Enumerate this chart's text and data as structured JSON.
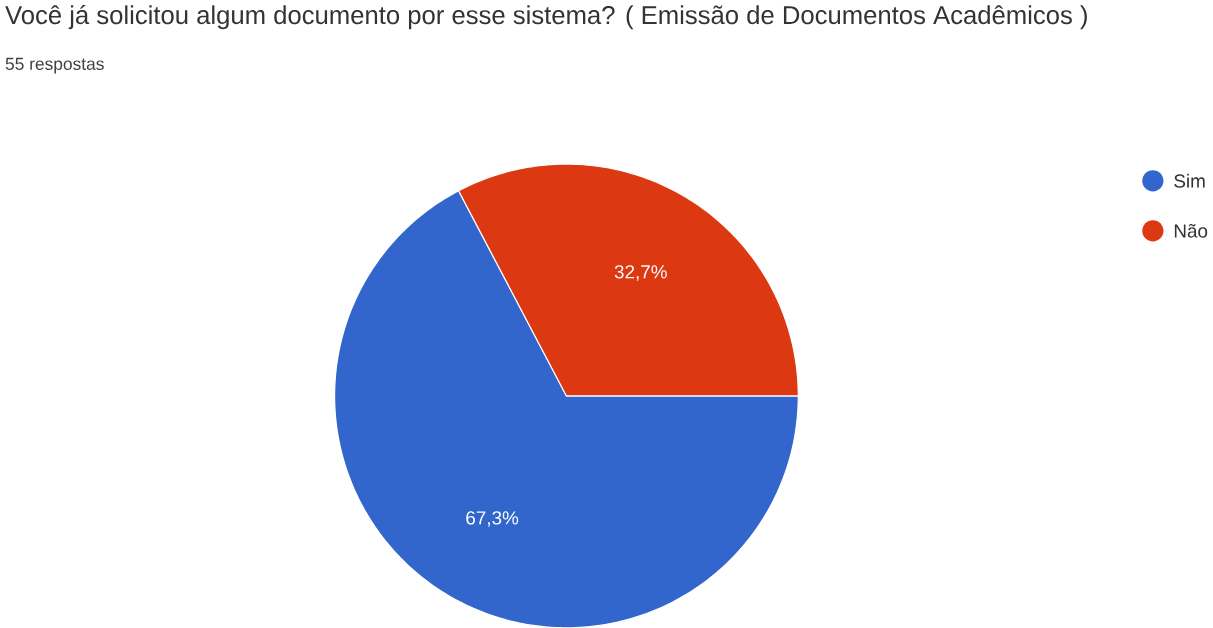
{
  "chart_data": {
    "type": "pie",
    "title": "Você já solicitou algum documento por esse sistema? (  Emissão de Documentos Acadêmicos )",
    "subtitle": "55 respostas",
    "categories": [
      "Sim",
      "Não"
    ],
    "values": [
      67.3,
      32.7
    ],
    "colors": [
      "#3366cc",
      "#dc3912"
    ],
    "value_labels": [
      "67,3%",
      "32,7%"
    ],
    "legend": "right"
  }
}
